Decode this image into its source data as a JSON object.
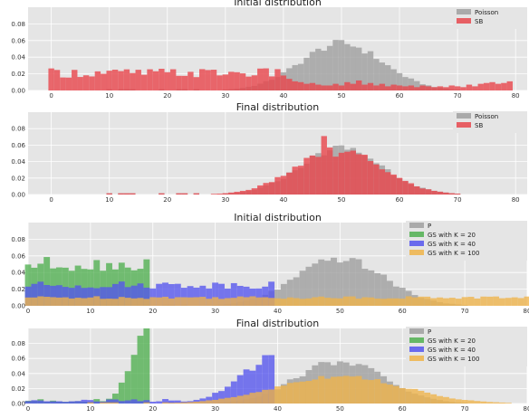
{
  "chart_data": [
    {
      "type": "bar",
      "title": "Initial distribution",
      "xlim": [
        -4,
        82
      ],
      "ylim": [
        0,
        0.1
      ],
      "xticks": [
        "0",
        "10",
        "20",
        "30",
        "40",
        "50",
        "60",
        "70",
        "80"
      ],
      "yticks": [
        "0.00",
        "0.02",
        "0.04",
        "0.06",
        "0.08"
      ],
      "legend_position": "top-right",
      "grid": true,
      "series": [
        {
          "name": "Poisson",
          "color": "#a0a0a0",
          "kind": "normal",
          "mean": 50,
          "sd": 7.07,
          "scale": 1.0
        },
        {
          "name": "SB",
          "color": "#e8484e",
          "kind": "uniform-tail",
          "level": 0.021,
          "tail": [
            0.018,
            0.014,
            0.011,
            0.01,
            0.008,
            0.009,
            0.007,
            0.006,
            0.006,
            0.008,
            0.006,
            0.01,
            0.008,
            0.012,
            0.007,
            0.009,
            0.006,
            0.008,
            0.005,
            0.007,
            0.006,
            0.005,
            0.006,
            0.004,
            0.006,
            0.005,
            0.004,
            0.005,
            0.004,
            0.006,
            0.005,
            0.004,
            0.007,
            0.005,
            0.008,
            0.009,
            0.01,
            0.008,
            0.009,
            0.011
          ]
        }
      ]
    },
    {
      "type": "bar",
      "title": "Final distribution",
      "xlim": [
        -4,
        82
      ],
      "ylim": [
        0,
        0.1
      ],
      "xticks": [
        "0",
        "10",
        "20",
        "30",
        "40",
        "50",
        "60",
        "70",
        "80"
      ],
      "yticks": [
        "0.00",
        "0.02",
        "0.04",
        "0.06",
        "0.08"
      ],
      "legend_position": "top-right",
      "grid": true,
      "series": [
        {
          "name": "Poisson",
          "color": "#a0a0a0",
          "kind": "normal",
          "mean": 50,
          "sd": 7.07,
          "scale": 1.0
        },
        {
          "name": "SB",
          "color": "#e8484e",
          "kind": "normal",
          "mean": 49.5,
          "sd": 7.4,
          "scale": 1.0,
          "spikes": {
            "47": 0.071,
            "49": 0.046,
            "51": 0.052
          }
        }
      ]
    },
    {
      "type": "bar",
      "title": "Initial distribution",
      "xlim": [
        0,
        80
      ],
      "ylim": [
        0,
        0.1
      ],
      "xticks": [
        "0",
        "10",
        "20",
        "30",
        "40",
        "50",
        "60",
        "70",
        "80"
      ],
      "yticks": [
        "0.00",
        "0.02",
        "0.04",
        "0.06",
        "0.08"
      ],
      "legend_position": "top-right",
      "grid": true,
      "series": [
        {
          "name": "P",
          "color": "#a0a0a0",
          "kind": "normal",
          "mean": 50,
          "sd": 7.07,
          "scale": 1.0
        },
        {
          "name": "GS with K = 20",
          "color": "#50b050",
          "kind": "uniform",
          "from": 0,
          "to": 20,
          "level": 0.05
        },
        {
          "name": "GS with K = 40",
          "color": "#5555ee",
          "kind": "uniform",
          "from": 0,
          "to": 40,
          "level": 0.025
        },
        {
          "name": "GS with K = 100",
          "color": "#f0b449",
          "kind": "uniform",
          "from": 0,
          "to": 100,
          "level": 0.01
        }
      ]
    },
    {
      "type": "bar",
      "title": "Final distribution",
      "xlim": [
        0,
        80
      ],
      "ylim": [
        0,
        0.1
      ],
      "xticks": [
        "0",
        "10",
        "20",
        "30",
        "40",
        "50",
        "60",
        "70",
        "80"
      ],
      "yticks": [
        "0.00",
        "0.02",
        "0.04",
        "0.06",
        "0.08"
      ],
      "legend_position": "top-right",
      "grid": true,
      "series": [
        {
          "name": "P",
          "color": "#a0a0a0",
          "kind": "normal",
          "mean": 50,
          "sd": 7.07,
          "scale": 1.0
        },
        {
          "name": "GS with K = 20",
          "color": "#50b050",
          "kind": "truncnormal",
          "mean": 21,
          "sd": 3.2,
          "to": 20,
          "scale": 1.25
        },
        {
          "name": "GS with K = 40",
          "color": "#5555ee",
          "kind": "truncnormal",
          "mean": 41,
          "sd": 6.0,
          "to": 40,
          "scale": 1.05
        },
        {
          "name": "GS with K = 100",
          "color": "#f0b449",
          "kind": "normal",
          "mean": 50,
          "sd": 10,
          "scale": 0.92
        }
      ]
    }
  ]
}
